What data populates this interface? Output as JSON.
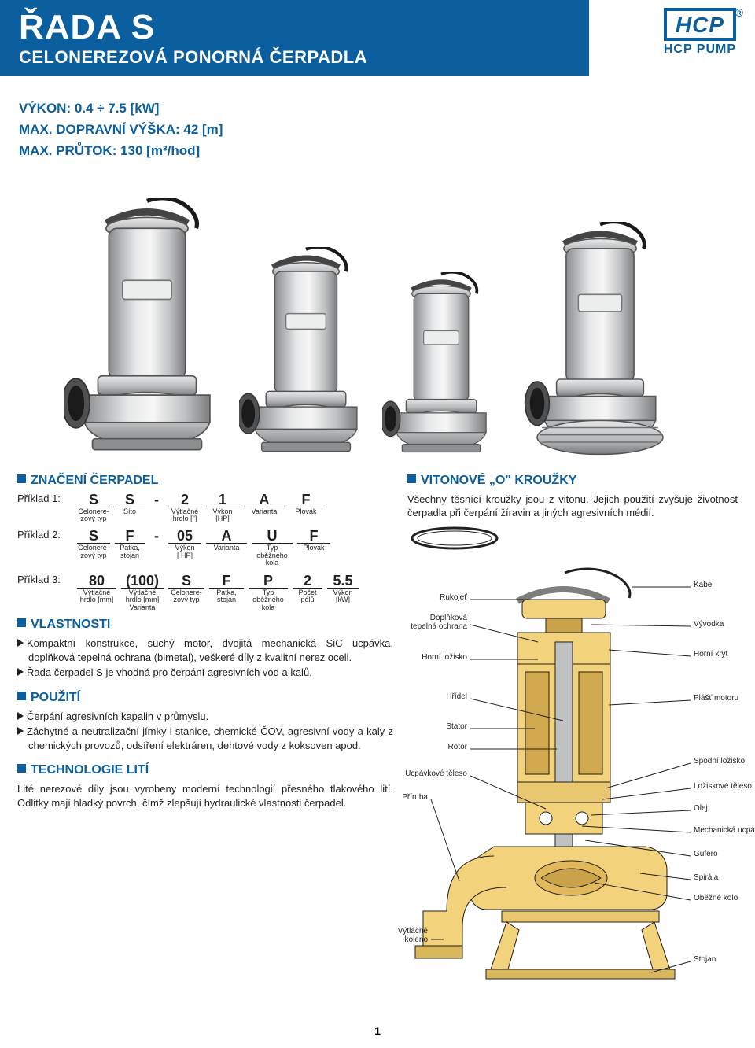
{
  "header": {
    "series": "ŘADA S",
    "subtitle": "CELONEREZOVÁ PONORNÁ ČERPADLA"
  },
  "logo": {
    "brand": "HCP",
    "sub": "HCP PUMP"
  },
  "specs": {
    "power": "VÝKON: 0.4 ÷ 7.5 [kW]",
    "head": "MAX. DOPRAVNÍ VÝŠKA: 42 [m]",
    "flow": "MAX. PRŮTOK: 130 [m³/hod]"
  },
  "sections": {
    "designation_title": "ZNAČENÍ ČERPADEL",
    "features_title": "VLASTNOSTI",
    "usage_title": "POUŽITÍ",
    "casting_title": "TECHNOLOGIE LITÍ",
    "oring_title": "VITONOVÉ „O\" KROUŽKY"
  },
  "designation": {
    "ex1": {
      "label": "Příklad 1:",
      "cells": {
        "c1": "S",
        "s1": "Celonere-\nzový typ",
        "c2": "S",
        "s2": "Síto",
        "dash": "-",
        "c3": "2",
        "s3": "Výtlačné\nhrdlo [\"]",
        "c4": "1",
        "s4": "Výkon\n[HP]",
        "c5": "A",
        "s5": "Varianta",
        "c6": "F",
        "s6": "Plovák"
      }
    },
    "ex2": {
      "label": "Příklad 2:",
      "cells": {
        "c1": "S",
        "s1": "Celonere-\nzový typ",
        "c2": "F",
        "s2": "Patka,\nstojan",
        "dash": "-",
        "c3": "05",
        "s3": "Výkon\n[ HP]",
        "c4": "A",
        "s4": "Varianta",
        "c5": "U",
        "s5": "Typ\noběžného\nkola",
        "c6": "F",
        "s6": "Plovák"
      }
    },
    "ex3": {
      "label": "Příklad 3:",
      "cells": {
        "c1": "80",
        "s1": "Výtlačné\nhrdlo [mm]",
        "c2": "(100)",
        "s2": "Výtlačné\nhrdlo [mm]\nVarianta",
        "c3": "S",
        "s3": "Celonere-\nzový typ",
        "c4": "F",
        "s4": "Patka,\nstojan",
        "c5": "P",
        "s5": "Typ\noběžného\nkola",
        "c6": "2",
        "s6": "Počet\npólů",
        "c7": "5.5",
        "s7": "Výkon\n[kW]"
      }
    }
  },
  "features": {
    "p1": "Kompaktní konstrukce, suchý motor, dvojitá mecha­nická SiC ucpávka, doplňková tepelná ochrana (bi­metal), veškeré díly z kvalitní nerez oceli.",
    "p2": "Řada čerpadel S je vhodná pro čerpání agresivních vod a kalů."
  },
  "usage": {
    "p1": "Čerpání agresivních kapalin v průmyslu.",
    "p2": "Záchytné a neutralizační jímky i stanice, chemické ČOV, agresivní vody a kaly z chemických provozů, odsíření elektráren, dehtové vody z koksoven apod."
  },
  "casting": {
    "p1": "Lité nerezové díly jsou vyrobeny moderní technologií přesného tlakového lití. Odlitky mají hladký povrch, čímž zlepšují hydraulické vlastnosti čerpadel."
  },
  "oring": {
    "p1": "Všechny těsnící kroužky jsou z vitonu. Jejich použití zvyšuje životnost čerpadla při čerpání žíravin a jiných agresivních médií."
  },
  "cutaway_labels": {
    "left": {
      "rukojet": "Rukojeť",
      "dopl_ochrana": "Doplňková\ntepelná ochrana",
      "horni_lozisko": "Horní ložisko",
      "hridel": "Hřídel",
      "stator": "Stator",
      "rotor": "Rotor",
      "ucpavkove_teleso": "Ucpávkové těleso",
      "priruba": "Příruba",
      "vytlacne_koleno": "Výtlačné\nkoleno"
    },
    "right": {
      "kabel": "Kabel",
      "vyvodka": "Vývodka",
      "horni_kryt": "Horní kryt",
      "plast_motoru": "Plášť motoru",
      "spodni_lozisko": "Spodní ložisko",
      "loziskove_teleso": "Ložiskové těleso",
      "olej": "Olej",
      "mech_ucpavka": "Mechanická ucpávka",
      "gufero": "Gufero",
      "spirala": "Spirála",
      "obezne_kolo": "Oběžné kolo",
      "stojan": "Stojan"
    }
  },
  "page_number": "1",
  "colors": {
    "brand_blue": "#0b5f9e",
    "text": "#231f20",
    "cut_fill": "#f2d27a",
    "cut_shadow": "#c9a24a",
    "steel_light": "#d9dadb",
    "steel_mid": "#a9abad",
    "steel_dark": "#6f7274"
  }
}
